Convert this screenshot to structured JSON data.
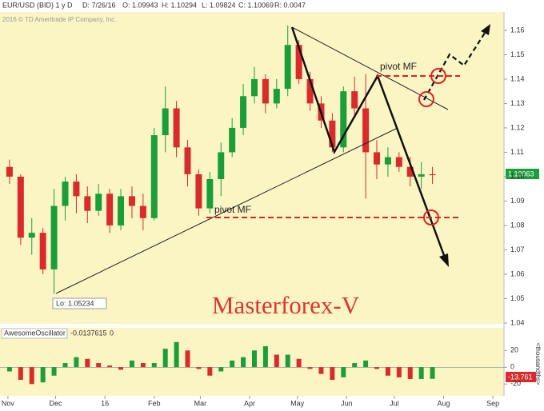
{
  "header": {
    "symbol": "EUR/USD (BID) 1 y D",
    "date": "D: 7/26/16",
    "open": "O: 1.09943",
    "high": "H: 1.10294",
    "low": "L: 1.09824",
    "close": "C: 1.10069",
    "range": "R: 0.0047",
    "copyright": "2016 © TD Ameritrade IP Company, Inc."
  },
  "chart_data": [
    {
      "type": "candlestick",
      "annotations": [
        "pivot MF",
        "pivot MF",
        "Masterforex-V"
      ],
      "low_label": "Lo: 1.05234",
      "last_label": "1.10063",
      "up_color": "#1a9e3a",
      "down_color": "#d92b2b",
      "x": [
        1,
        8,
        15,
        22,
        29,
        36,
        43,
        50,
        57,
        64,
        71,
        78,
        85,
        92,
        99,
        106,
        113,
        120,
        127,
        134,
        141,
        148,
        155,
        162,
        169,
        176,
        183,
        190,
        197,
        204,
        211,
        218,
        225,
        232,
        239,
        246,
        253,
        260,
        267
      ],
      "open": [
        1.104,
        1.1,
        1.075,
        1.077,
        1.062,
        1.088,
        1.098,
        1.092,
        1.086,
        1.093,
        1.08,
        1.092,
        1.088,
        1.083,
        1.117,
        1.128,
        1.112,
        1.101,
        1.087,
        1.099,
        1.11,
        1.12,
        1.133,
        1.14,
        1.13,
        1.136,
        1.154,
        1.14,
        1.13,
        1.123,
        1.112,
        1.135,
        1.128,
        1.11,
        1.105,
        1.108,
        1.104,
        1.1,
        1.101
      ],
      "high": [
        1.107,
        1.101,
        1.083,
        1.079,
        1.095,
        1.1,
        1.101,
        1.096,
        1.097,
        1.095,
        1.095,
        1.096,
        1.093,
        1.12,
        1.137,
        1.131,
        1.115,
        1.103,
        1.102,
        1.114,
        1.124,
        1.138,
        1.145,
        1.142,
        1.14,
        1.162,
        1.156,
        1.143,
        1.133,
        1.126,
        1.137,
        1.141,
        1.142,
        1.115,
        1.112,
        1.11,
        1.108,
        1.106,
        1.104
      ],
      "low": [
        1.097,
        1.072,
        1.068,
        1.06,
        1.052,
        1.082,
        1.085,
        1.081,
        1.084,
        1.077,
        1.078,
        1.083,
        1.078,
        1.082,
        1.11,
        1.108,
        1.096,
        1.084,
        1.085,
        1.092,
        1.108,
        1.117,
        1.13,
        1.126,
        1.128,
        1.133,
        1.138,
        1.127,
        1.12,
        1.11,
        1.11,
        1.125,
        1.091,
        1.099,
        1.1,
        1.102,
        1.096,
        1.095,
        1.097
      ],
      "close": [
        1.1,
        1.075,
        1.077,
        1.062,
        1.088,
        1.098,
        1.092,
        1.086,
        1.093,
        1.08,
        1.092,
        1.088,
        1.083,
        1.117,
        1.128,
        1.112,
        1.101,
        1.087,
        1.099,
        1.11,
        1.12,
        1.133,
        1.14,
        1.13,
        1.136,
        1.154,
        1.14,
        1.13,
        1.123,
        1.112,
        1.135,
        1.128,
        1.11,
        1.105,
        1.108,
        1.104,
        1.1,
        1.101,
        1.1006
      ],
      "xlim": [
        -5,
        312
      ],
      "ylim": [
        1.04,
        1.1675
      ],
      "yticks": [
        {
          "value": 1.04,
          "label": "1.04"
        },
        {
          "value": 1.05,
          "label": "1.05"
        },
        {
          "value": 1.06,
          "label": "1.06"
        },
        {
          "value": 1.07,
          "label": "1.07"
        },
        {
          "value": 1.08,
          "label": "1.08"
        },
        {
          "value": 1.09,
          "label": "1.09"
        },
        {
          "value": 1.1,
          "label": "1.10"
        },
        {
          "value": 1.11,
          "label": "1.11"
        },
        {
          "value": 1.12,
          "label": "1.12"
        },
        {
          "value": 1.13,
          "label": "1.13"
        },
        {
          "value": 1.14,
          "label": "1.14"
        },
        {
          "value": 1.15,
          "label": "1.15"
        },
        {
          "value": 1.16,
          "label": "1.16"
        }
      ]
    },
    {
      "type": "bar",
      "title": "AwesomeOscillator",
      "params": [
        "-0.0137615",
        "0"
      ],
      "y_label": "<thousandths>",
      "value_label": "-13.761",
      "up_color": "#1a9e3a",
      "down_color": "#d92b2b",
      "x": [
        1,
        8,
        15,
        22,
        29,
        36,
        43,
        50,
        57,
        64,
        71,
        78,
        85,
        92,
        99,
        106,
        113,
        120,
        127,
        134,
        141,
        148,
        155,
        162,
        169,
        176,
        183,
        190,
        197,
        204,
        211,
        218,
        225,
        232,
        239,
        246,
        253,
        260,
        267
      ],
      "values": [
        -5,
        -15,
        -20,
        -18,
        -10,
        5,
        12,
        10,
        5,
        2,
        -3,
        8,
        5,
        5,
        22,
        30,
        20,
        -2,
        -10,
        -5,
        8,
        12,
        20,
        25,
        15,
        15,
        10,
        -2,
        -8,
        -15,
        -12,
        5,
        8,
        -2,
        -10,
        -12,
        -14,
        -14,
        -13.761
      ],
      "xlim": [
        -5,
        312
      ],
      "ylim": [
        -34,
        45
      ],
      "yticks": [
        20,
        0,
        -20
      ],
      "xticks": [
        {
          "value": 0,
          "label": "Nov"
        },
        {
          "value": 30,
          "label": "Dec"
        },
        {
          "value": 61,
          "label": "16"
        },
        {
          "value": 92,
          "label": "Feb"
        },
        {
          "value": 121,
          "label": "Mar"
        },
        {
          "value": 152,
          "label": "Apr"
        },
        {
          "value": 182,
          "label": "May"
        },
        {
          "value": 213,
          "label": "Jun"
        },
        {
          "value": 243,
          "label": "Jul"
        },
        {
          "value": 274,
          "label": "Aug"
        },
        {
          "value": 305,
          "label": "Sep"
        }
      ]
    }
  ]
}
